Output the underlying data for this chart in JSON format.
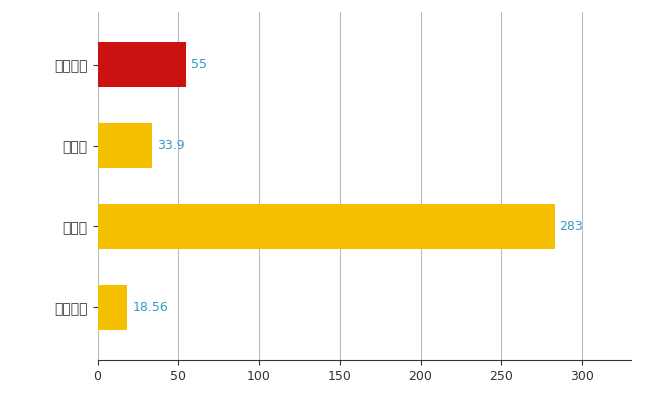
{
  "categories": [
    "東広島市",
    "県平均",
    "県最大",
    "全国平均"
  ],
  "values": [
    55,
    33.9,
    283,
    18.56
  ],
  "bar_colors": [
    "#cc1111",
    "#f5c000",
    "#f5c000",
    "#f5c000"
  ],
  "value_labels": [
    "55",
    "33.9",
    "283",
    "18.56"
  ],
  "xlim": [
    0,
    330
  ],
  "xticks": [
    0,
    50,
    100,
    150,
    200,
    250,
    300
  ],
  "background_color": "#ffffff",
  "grid_color": "#bbbbbb",
  "label_color": "#3399cc",
  "bar_height": 0.55
}
